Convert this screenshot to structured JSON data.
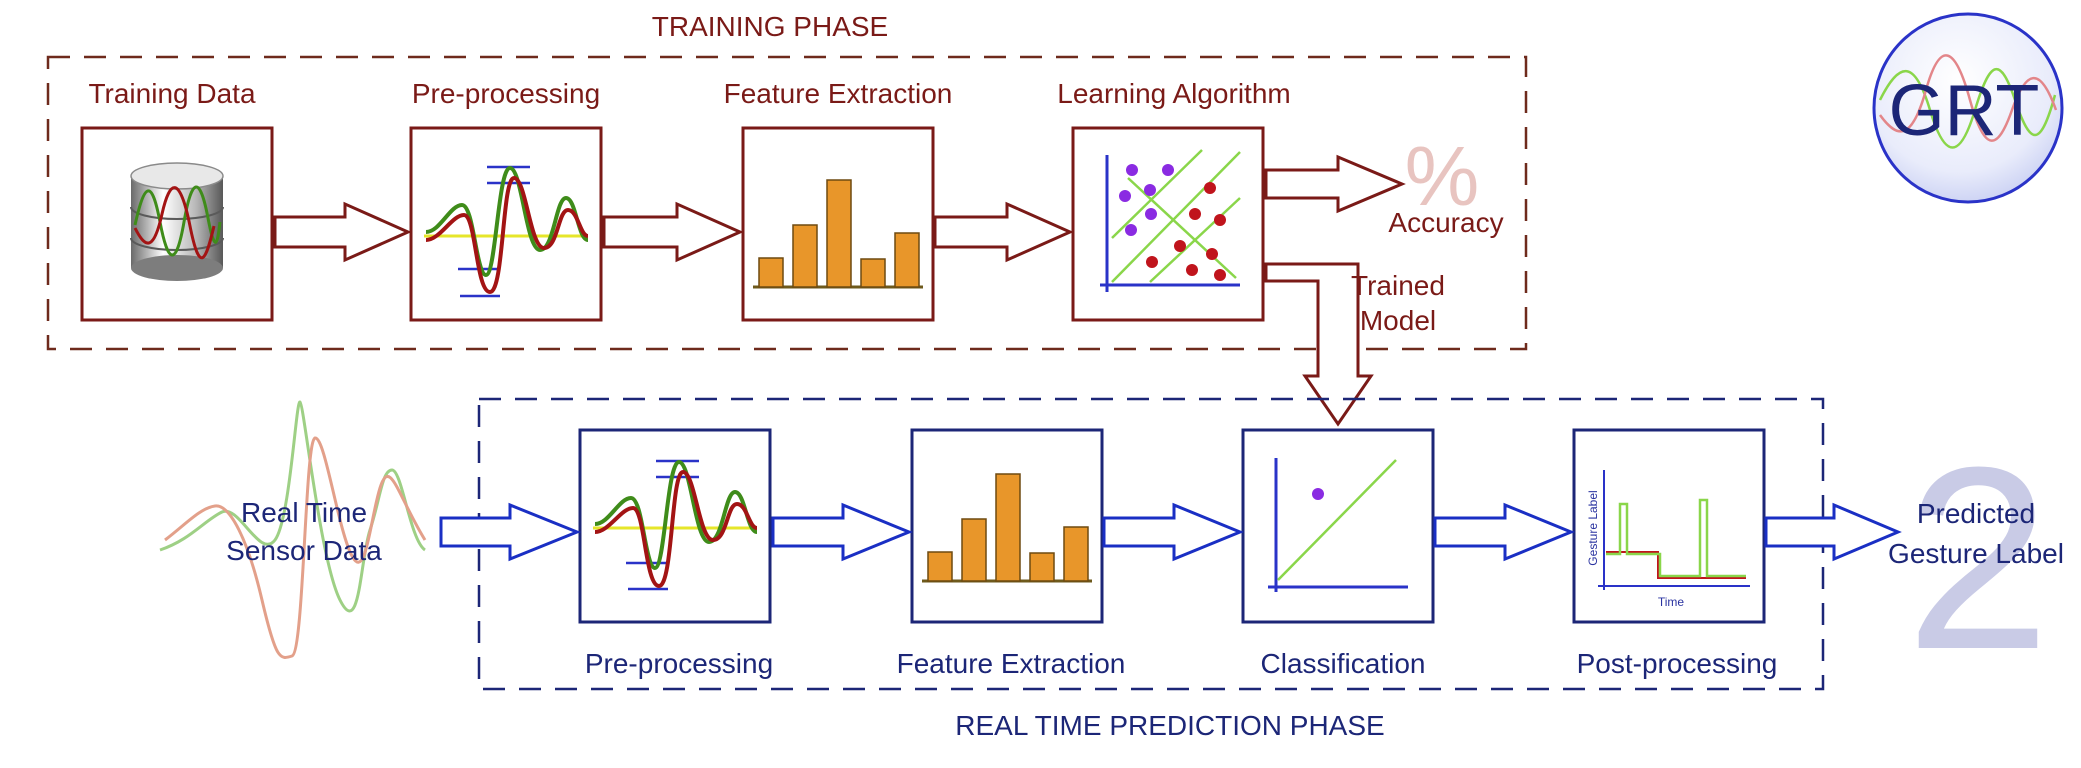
{
  "training_phase": {
    "title": "TRAINING PHASE",
    "stages": [
      "Training Data",
      "Pre-processing",
      "Feature Extraction",
      "Learning Algorithm"
    ],
    "accuracy_symbol": "%",
    "accuracy_label": "Accuracy",
    "trained_model_label": [
      "Trained",
      "Model"
    ]
  },
  "prediction_phase": {
    "title": "REAL TIME PREDICTION PHASE",
    "input_label": [
      "Real Time",
      "Sensor Data"
    ],
    "stages": [
      "Pre-processing",
      "Feature Extraction",
      "Classification",
      "Post-processing"
    ],
    "output_label": [
      "Predicted",
      "Gesture Label"
    ],
    "post_chart": {
      "ylabel": "Gesture Label",
      "xlabel": "Time"
    }
  },
  "logo": {
    "text": "GRT"
  },
  "watermark": "2",
  "colors": {
    "training": "#7a1a17",
    "prediction": "#1c2677",
    "prediction_arrow": "#1a2fc4",
    "bar_fill": "#e8962a",
    "wave_green": "#3f8c1a",
    "wave_red": "#a31414",
    "scatter_green": "#8ad64a",
    "dot_purple": "#8a2be2",
    "dot_red": "#c0141c"
  },
  "feature_bars": [
    2,
    4.5,
    8,
    2,
    4
  ]
}
